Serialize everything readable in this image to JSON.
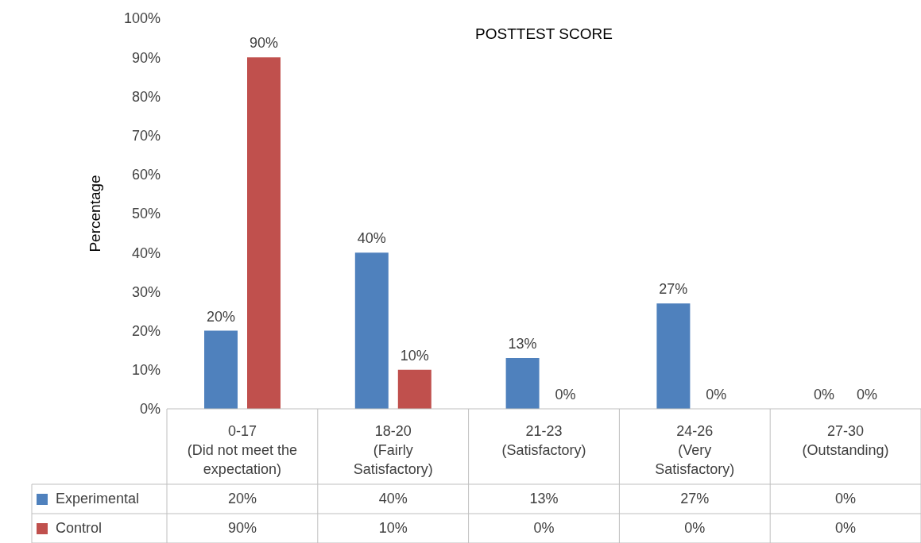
{
  "chart_data": {
    "type": "bar",
    "title": "POSTTEST SCORE",
    "ylabel": "Percentage",
    "categories": [
      "0-17 (Did not meet the expectation)",
      "18-20 (Fairly Satisfactory)",
      "21-23 (Satisfactory)",
      "24-26 (Very Satisfactory)",
      "27-30 (Outstanding)"
    ],
    "series": [
      {
        "name": "Experimental",
        "color": "#4f81bd",
        "values": [
          20,
          40,
          13,
          27,
          0
        ],
        "value_labels": [
          "20%",
          "40%",
          "13%",
          "27%",
          "0%"
        ]
      },
      {
        "name": "Control",
        "color": "#c0504d",
        "values": [
          90,
          10,
          0,
          0,
          0
        ],
        "value_labels": [
          "90%",
          "10%",
          "0%",
          "0%",
          "0%"
        ]
      }
    ],
    "ylim": [
      0,
      100
    ],
    "yticks": [
      {
        "value": 0,
        "label": "0%"
      },
      {
        "value": 10,
        "label": "10%"
      },
      {
        "value": 20,
        "label": "20%"
      },
      {
        "value": 30,
        "label": "30%"
      },
      {
        "value": 40,
        "label": "40%"
      },
      {
        "value": 50,
        "label": "50%"
      },
      {
        "value": 60,
        "label": "60%"
      },
      {
        "value": 70,
        "label": "70%"
      },
      {
        "value": 80,
        "label": "80%"
      },
      {
        "value": 90,
        "label": "90%"
      },
      {
        "value": 100,
        "label": "100%"
      }
    ],
    "grid": false,
    "legend": "bottom"
  }
}
